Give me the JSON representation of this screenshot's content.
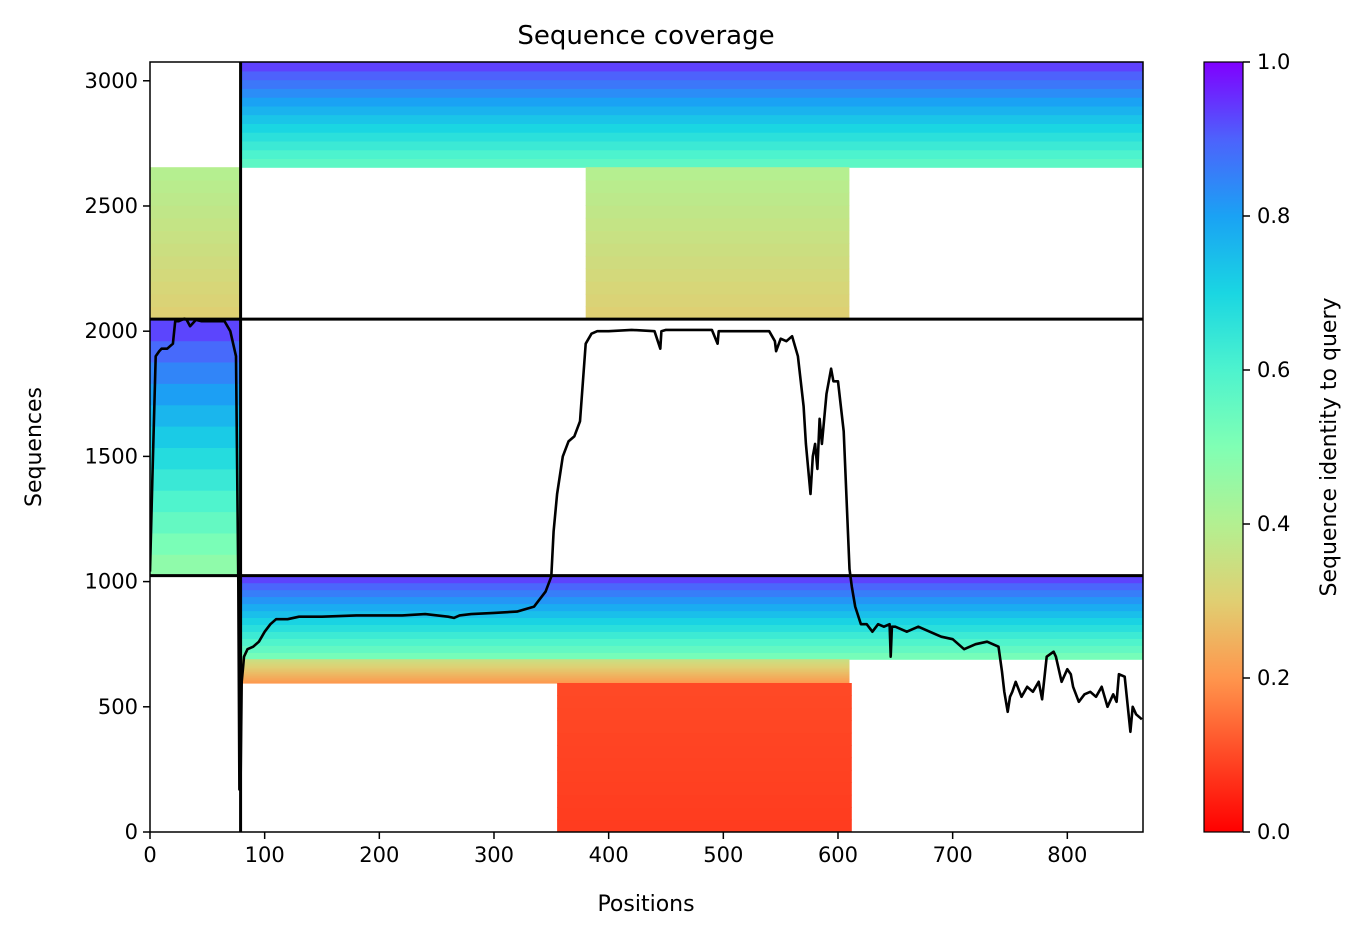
{
  "chart_data": {
    "type": "heatmap",
    "title": "Sequence coverage",
    "xlabel": "Positions",
    "ylabel": "Sequences",
    "xlim": [
      0,
      866
    ],
    "ylim": [
      0,
      3075
    ],
    "xticks": [
      0,
      100,
      200,
      300,
      400,
      500,
      600,
      700,
      800
    ],
    "yticks": [
      0,
      500,
      1000,
      1500,
      2000,
      2500,
      3000
    ],
    "colorbar": {
      "label": "Sequence identity to query",
      "range": [
        0.0,
        1.0
      ],
      "ticks": [
        "0.0",
        "0.2",
        "0.4",
        "0.6",
        "0.8",
        "1.0"
      ],
      "colormap": "rainbow"
    },
    "chain_boundaries": {
      "positions": [
        79
      ],
      "sequences": [
        1024,
        2048
      ]
    },
    "coverage_blocks": [
      {
        "x": [
          0,
          79
        ],
        "y": [
          1024,
          2048
        ],
        "identity_range": [
          0.45,
          0.95
        ]
      },
      {
        "x": [
          79,
          866
        ],
        "y": [
          2655,
          3075
        ],
        "identity_range": [
          0.55,
          0.95
        ]
      },
      {
        "x": [
          0,
          79
        ],
        "y": [
          2048,
          2655
        ],
        "identity_range": [
          0.3,
          0.4
        ]
      },
      {
        "x": [
          380,
          610
        ],
        "y": [
          2048,
          2655
        ],
        "identity_range": [
          0.3,
          0.4
        ]
      },
      {
        "x": [
          79,
          866
        ],
        "y": [
          690,
          1024
        ],
        "identity_range": [
          0.5,
          0.95
        ]
      },
      {
        "x": [
          79,
          610
        ],
        "y": [
          595,
          690
        ],
        "identity_range": [
          0.2,
          0.35
        ]
      },
      {
        "x": [
          355,
          612
        ],
        "y": [
          0,
          595
        ],
        "identity_range": [
          0.08,
          0.1
        ]
      }
    ],
    "coverage_line": {
      "color": "#000000",
      "x": [
        0,
        2,
        5,
        8,
        10,
        15,
        20,
        22,
        25,
        30,
        32,
        35,
        40,
        45,
        50,
        55,
        60,
        65,
        70,
        75,
        77,
        78,
        79,
        80,
        81,
        82,
        85,
        90,
        95,
        100,
        105,
        110,
        120,
        130,
        150,
        180,
        200,
        220,
        240,
        260,
        265,
        270,
        280,
        300,
        320,
        335,
        345,
        350,
        352,
        355,
        360,
        365,
        370,
        375,
        380,
        385,
        390,
        400,
        420,
        440,
        445,
        446,
        450,
        470,
        490,
        495,
        496,
        500,
        520,
        540,
        545,
        546,
        550,
        555,
        560,
        565,
        570,
        572,
        574,
        576,
        578,
        580,
        582,
        584,
        586,
        590,
        592,
        594,
        596,
        600,
        605,
        610,
        612,
        615,
        620,
        625,
        630,
        635,
        640,
        645,
        646,
        647,
        650,
        660,
        670,
        680,
        690,
        700,
        710,
        720,
        730,
        740,
        743,
        745,
        748,
        750,
        752,
        755,
        760,
        765,
        770,
        775,
        778,
        782,
        788,
        790,
        795,
        800,
        803,
        805,
        810,
        815,
        820,
        825,
        830,
        835,
        840,
        843,
        845,
        850,
        855,
        857,
        860,
        865
      ],
      "y": [
        1040,
        1400,
        1900,
        1920,
        1930,
        1930,
        1950,
        2040,
        2040,
        2050,
        2045,
        2020,
        2045,
        2040,
        2040,
        2040,
        2040,
        2040,
        2000,
        1900,
        1000,
        170,
        200,
        600,
        650,
        700,
        730,
        740,
        760,
        800,
        830,
        850,
        850,
        860,
        860,
        865,
        865,
        865,
        870,
        860,
        855,
        865,
        870,
        875,
        880,
        900,
        960,
        1020,
        1200,
        1350,
        1500,
        1560,
        1580,
        1640,
        1950,
        1990,
        2000,
        2000,
        2005,
        2000,
        1930,
        2000,
        2005,
        2005,
        2005,
        1950,
        2000,
        2000,
        2000,
        2000,
        1960,
        1920,
        1970,
        1960,
        1980,
        1900,
        1700,
        1550,
        1450,
        1350,
        1500,
        1550,
        1450,
        1650,
        1550,
        1750,
        1800,
        1850,
        1800,
        1800,
        1600,
        1050,
        980,
        900,
        830,
        830,
        800,
        830,
        820,
        830,
        700,
        820,
        820,
        800,
        820,
        800,
        780,
        770,
        730,
        750,
        760,
        740,
        640,
        560,
        480,
        540,
        560,
        600,
        540,
        580,
        560,
        600,
        530,
        700,
        720,
        700,
        600,
        650,
        630,
        580,
        520,
        550,
        560,
        540,
        580,
        500,
        550,
        520,
        630,
        620,
        400,
        500,
        470,
        450
      ]
    }
  }
}
